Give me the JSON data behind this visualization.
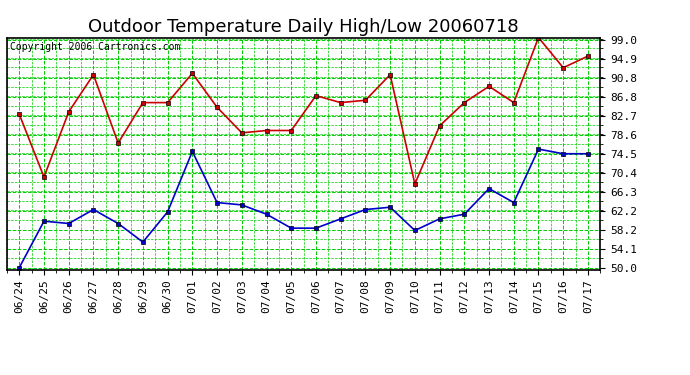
{
  "title": "Outdoor Temperature Daily High/Low 20060718",
  "copyright": "Copyright 2006 Cartronics.com",
  "dates": [
    "06/24",
    "06/25",
    "06/26",
    "06/27",
    "06/28",
    "06/29",
    "06/30",
    "07/01",
    "07/02",
    "07/03",
    "07/04",
    "07/05",
    "07/06",
    "07/07",
    "07/08",
    "07/09",
    "07/10",
    "07/11",
    "07/12",
    "07/13",
    "07/14",
    "07/15",
    "07/16",
    "07/17"
  ],
  "high": [
    83.0,
    69.5,
    83.5,
    91.5,
    76.8,
    85.5,
    85.5,
    91.8,
    84.5,
    79.0,
    79.5,
    79.5,
    87.0,
    85.5,
    86.0,
    91.5,
    68.0,
    80.5,
    85.5,
    89.0,
    85.5,
    99.5,
    93.0,
    95.5
  ],
  "low": [
    50.0,
    60.0,
    59.5,
    62.5,
    59.5,
    55.5,
    62.0,
    75.0,
    64.0,
    63.5,
    61.5,
    58.5,
    58.5,
    60.5,
    62.5,
    63.0,
    58.0,
    60.5,
    61.5,
    67.0,
    64.0,
    75.5,
    74.5,
    74.5
  ],
  "high_color": "#cc0000",
  "low_color": "#0000cc",
  "bg_color": "#ffffff",
  "grid_color": "#00cc00",
  "yticks": [
    50.0,
    54.1,
    58.2,
    62.2,
    66.3,
    70.4,
    74.5,
    78.6,
    82.7,
    86.8,
    90.8,
    94.9,
    99.0
  ],
  "ymin": 50.0,
  "ymax": 99.0,
  "marker": "s",
  "markersize": 3,
  "linewidth": 1.2,
  "title_fontsize": 13,
  "tick_fontsize": 8,
  "copyright_fontsize": 7
}
